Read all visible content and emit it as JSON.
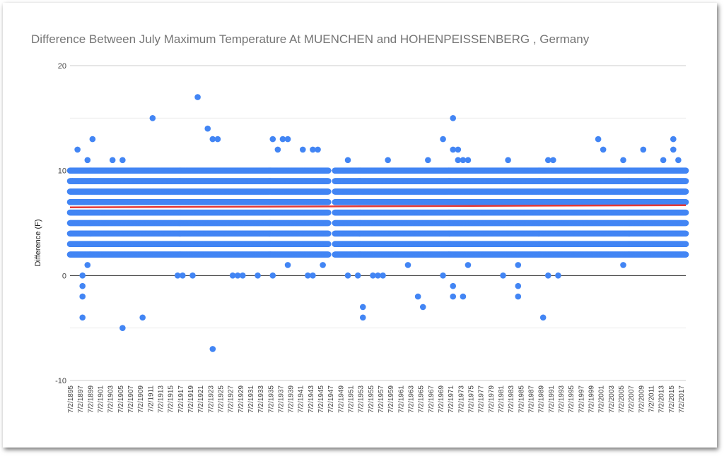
{
  "chart_data": {
    "type": "scatter",
    "title": "Difference Between July Maximum Temperature At MUENCHEN and HOHENPEISSENBERG , Germany",
    "ylabel": "Difference (F)",
    "xlabel": "",
    "ylim": [
      -10,
      20
    ],
    "yticks": [
      -10,
      0,
      10,
      20
    ],
    "xlim_years": [
      1895,
      2018
    ],
    "gap_years": [
      1946,
      1947
    ],
    "x_tick_labels": [
      "7/2/1895",
      "7/2/1897",
      "7/2/1899",
      "7/2/1901",
      "7/2/1903",
      "7/2/1905",
      "7/2/1907",
      "7/2/1909",
      "7/2/1911",
      "7/2/1913",
      "7/2/1915",
      "7/2/1917",
      "7/2/1919",
      "7/2/1921",
      "7/2/1923",
      "7/2/1925",
      "7/2/1927",
      "7/2/1929",
      "7/2/1931",
      "7/2/1933",
      "7/2/1935",
      "7/2/1937",
      "7/2/1939",
      "7/2/1941",
      "7/2/1943",
      "7/2/1945",
      "7/2/1947",
      "7/2/1949",
      "7/2/1951",
      "7/2/1953",
      "7/2/1955",
      "7/2/1957",
      "7/2/1959",
      "7/2/1961",
      "7/2/1963",
      "7/2/1965",
      "7/2/1967",
      "7/2/1969",
      "7/2/1971",
      "7/2/1973",
      "7/2/1975",
      "7/2/1977",
      "7/2/1979",
      "7/2/1981",
      "7/2/1983",
      "7/2/1985",
      "7/2/1987",
      "7/2/1989",
      "7/2/1991",
      "7/2/1993",
      "7/2/1995",
      "7/2/1997",
      "7/2/1999",
      "7/2/2001",
      "7/2/2003",
      "7/2/2005",
      "7/2/2007",
      "7/2/2009",
      "7/2/2011",
      "7/2/2013",
      "7/2/2015",
      "7/2/2017"
    ],
    "series": [
      {
        "color": "#4285f4",
        "x": [
          1895,
          1896,
          1897,
          1897,
          1897,
          1897,
          1898,
          1898,
          1899,
          1903,
          1905,
          1905,
          1909,
          1911,
          1916,
          1917,
          1919,
          1920,
          1922,
          1923,
          1923,
          1924,
          1927,
          1928,
          1929,
          1932,
          1935,
          1935,
          1936,
          1937,
          1938,
          1938,
          1941,
          1942,
          1943,
          1943,
          1944,
          1945,
          1950,
          1950,
          1952,
          1953,
          1953,
          1955,
          1956,
          1957,
          1958,
          1962,
          1964,
          1965,
          1966,
          1969,
          1969,
          1971,
          1971,
          1971,
          1971,
          1972,
          1972,
          1973,
          1973,
          1974,
          1974,
          1981,
          1982,
          1984,
          1984,
          1984,
          1989,
          1990,
          1990,
          1990,
          1991,
          1992,
          2000,
          2001,
          2005,
          2005,
          2009,
          2013,
          2015,
          2015,
          2016,
          2017
        ],
        "y": [
          9,
          12,
          -4,
          -1,
          -2,
          0,
          11,
          1,
          13,
          11,
          -5,
          11,
          -4,
          15,
          0,
          0,
          0,
          17,
          14,
          13,
          -7,
          13,
          0,
          0,
          0,
          0,
          13,
          0,
          12,
          13,
          13,
          1,
          12,
          0,
          0,
          12,
          12,
          1,
          11,
          0,
          0,
          -3,
          -4,
          0,
          0,
          0,
          11,
          1,
          -2,
          -3,
          11,
          13,
          0,
          15,
          12,
          -1,
          -2,
          12,
          11,
          11,
          -2,
          11,
          1,
          0,
          11,
          -2,
          -1,
          1,
          -4,
          10,
          0,
          11,
          11,
          0,
          13,
          12,
          11,
          1,
          12,
          11,
          13,
          12,
          11,
          2
        ]
      }
    ],
    "dense_band": {
      "ymin": 2,
      "ymax": 10,
      "note": "monthly points fill integer levels 2 to 10 across all years"
    },
    "trend_line": {
      "color": "#e53935",
      "y_start": 6.5,
      "y_end": 6.7
    }
  }
}
